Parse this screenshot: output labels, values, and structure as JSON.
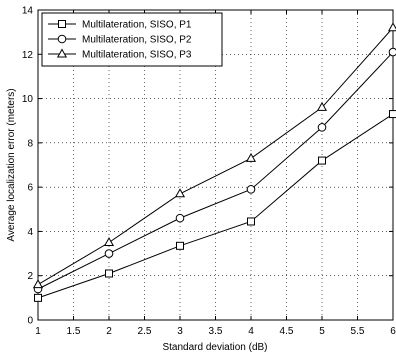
{
  "chart_data": {
    "type": "line",
    "xlabel": "Standard deviation (dB)",
    "ylabel": "Average localization error (meters)",
    "xlim": [
      1,
      6
    ],
    "ylim": [
      0,
      14
    ],
    "xticks": [
      "1",
      "1.5",
      "2",
      "2.5",
      "3",
      "3.5",
      "4",
      "4.5",
      "5",
      "5.5",
      "6"
    ],
    "yticks": [
      "0",
      "2",
      "4",
      "6",
      "8",
      "10",
      "12",
      "14"
    ],
    "grid": true,
    "legend_position": "top-left",
    "x": [
      1,
      2,
      3,
      4,
      5,
      6
    ],
    "series": [
      {
        "name": "Multilateration, SISO, P1",
        "marker": "square",
        "values": [
          1.0,
          2.1,
          3.35,
          4.45,
          7.2,
          9.3
        ]
      },
      {
        "name": "Multilateration, SISO, P2",
        "marker": "circle",
        "values": [
          1.4,
          3.0,
          4.6,
          5.9,
          8.7,
          12.1
        ]
      },
      {
        "name": "Multilateration, SISO, P3",
        "marker": "triangle",
        "values": [
          1.6,
          3.5,
          5.7,
          7.3,
          9.6,
          13.2
        ]
      }
    ],
    "colors": {
      "line": "#000000",
      "grid": "#000000",
      "background": "#ffffff"
    }
  }
}
